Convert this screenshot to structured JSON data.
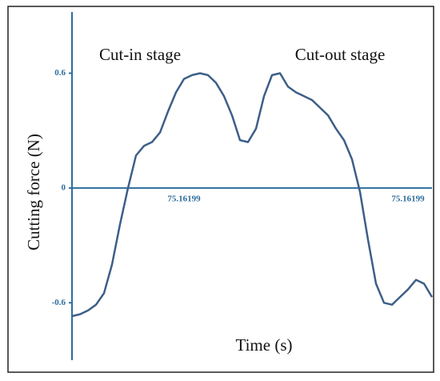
{
  "chart_data": {
    "type": "line",
    "y_label": "Cutting force (N)",
    "x_label": "Time (s)",
    "annotations": [
      "Cut-in stage",
      "Cut-out stage"
    ],
    "categories": [
      null,
      null,
      null,
      null,
      null,
      null,
      null,
      null,
      null,
      null,
      null,
      null,
      null,
      null,
      "75.16199",
      null,
      null,
      null,
      null,
      null,
      null,
      null,
      null,
      null,
      null,
      null,
      null,
      null,
      null,
      null,
      null,
      null,
      null,
      null,
      null,
      null,
      null,
      null,
      null,
      null,
      null,
      null,
      "75.16199",
      null,
      null,
      null
    ],
    "values": [
      -0.67,
      -0.66,
      -0.64,
      -0.61,
      -0.55,
      -0.4,
      -0.19,
      0.0,
      0.17,
      0.22,
      0.24,
      0.29,
      0.4,
      0.5,
      0.57,
      0.59,
      0.6,
      0.59,
      0.55,
      0.48,
      0.38,
      0.25,
      0.24,
      0.31,
      0.48,
      0.59,
      0.6,
      0.53,
      0.5,
      0.48,
      0.46,
      0.42,
      0.38,
      0.31,
      0.25,
      0.15,
      -0.02,
      -0.27,
      -0.5,
      -0.6,
      -0.61,
      -0.57,
      -0.53,
      -0.48,
      -0.5,
      -0.57
    ],
    "color": "#3d5f88",
    "axis_color": "#2e6e9e",
    "ylim": [
      -0.9,
      0.92
    ],
    "yticks": [
      -0.6,
      0,
      0.6
    ]
  }
}
